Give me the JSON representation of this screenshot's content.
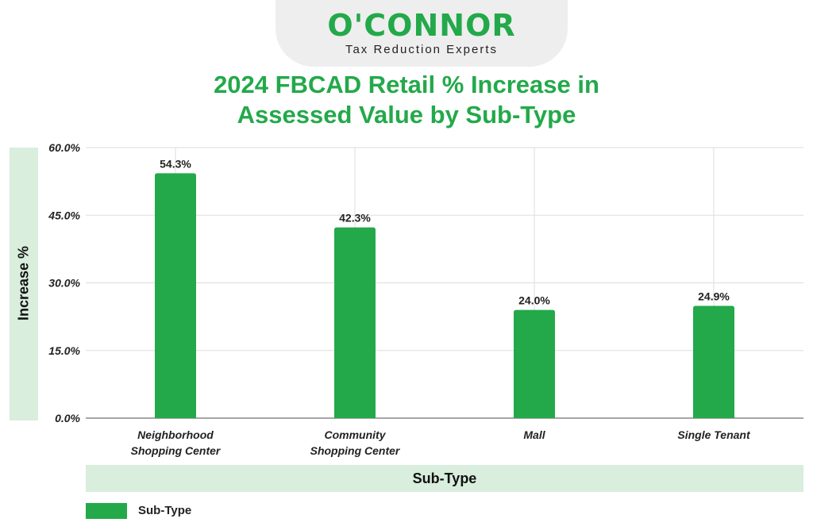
{
  "logo": {
    "name": "O'CONNOR",
    "tagline": "Tax Reduction Experts"
  },
  "colors": {
    "brand_green": "#23a94a",
    "band_green": "#d9eedd",
    "grid": "#dddddd",
    "axis": "#888888"
  },
  "chart_data": {
    "type": "bar",
    "title_lines": [
      "2024 FBCAD Retail % Increase in",
      "Assessed Value by Sub-Type"
    ],
    "xlabel": "Sub-Type",
    "ylabel": "Increase %",
    "categories": [
      [
        "Neighborhood",
        "Shopping Center"
      ],
      [
        "Community",
        "Shopping Center"
      ],
      [
        "Mall"
      ],
      [
        "Single Tenant"
      ]
    ],
    "series": [
      {
        "name": "Sub-Type",
        "values": [
          54.3,
          42.3,
          24.0,
          24.9
        ],
        "labels": [
          "54.3%",
          "42.3%",
          "24.0%",
          "24.9%"
        ],
        "color": "#23a94a"
      }
    ],
    "ylim": [
      0,
      60
    ],
    "yticks": [
      0,
      15,
      30,
      45,
      60
    ],
    "ytick_labels": [
      "0.0%",
      "15.0%",
      "30.0%",
      "45.0%",
      "60.0%"
    ],
    "grid": true,
    "legend_position": "bottom-left"
  }
}
